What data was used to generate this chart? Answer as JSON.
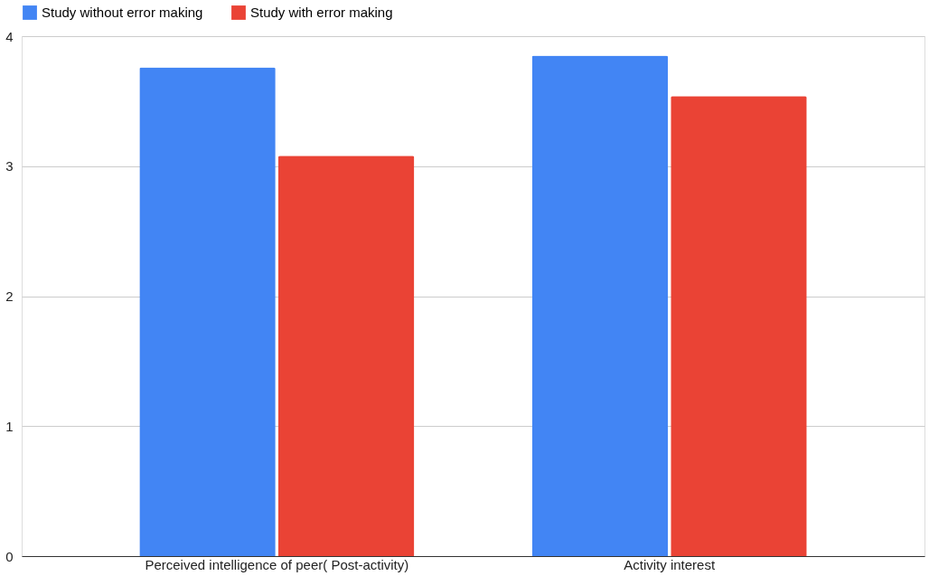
{
  "chart_data": {
    "type": "bar",
    "categories": [
      "Perceived intelligence of peer( Post-activity)",
      "Activity interest"
    ],
    "series": [
      {
        "name": "Study without error making",
        "color": "#4285f4",
        "values": [
          3.76,
          3.85
        ]
      },
      {
        "name": "Study with error making",
        "color": "#ea4335",
        "values": [
          3.08,
          3.54
        ]
      }
    ],
    "ylim": [
      0,
      4
    ],
    "yticks": [
      0,
      1,
      2,
      3,
      4
    ],
    "grid": "y",
    "legend": "top"
  }
}
